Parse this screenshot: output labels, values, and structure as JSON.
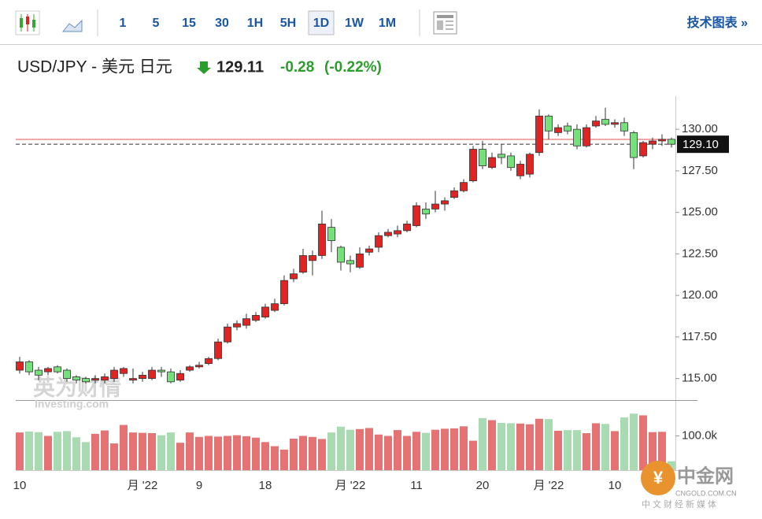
{
  "toolbar": {
    "intervals": [
      "1",
      "5",
      "15",
      "30",
      "1H",
      "5H",
      "1D",
      "1W",
      "1M"
    ],
    "active": 6,
    "link": "技术图表 »"
  },
  "header": {
    "symbol": "USD/JPY - 美元 日元",
    "price": "129.11",
    "change": "-0.28",
    "change_pct": "(-0.22%)"
  },
  "watermark": {
    "brand": "英为财情",
    "site": "Investing.com",
    "logo": "中金网",
    "logo_site": "CNGOLD.COM.CN",
    "logo_tag": "中文财经新媒体"
  },
  "chart_data": [
    {
      "type": "candlestick",
      "up_color": "#e02424",
      "down_color": "#76e07a",
      "categories": [
        "10",
        null,
        null,
        null,
        null,
        null,
        null,
        null,
        null,
        null,
        null,
        null,
        null,
        "月 '22",
        null,
        null,
        null,
        null,
        null,
        "9",
        null,
        null,
        null,
        null,
        null,
        null,
        "18",
        null,
        null,
        null,
        null,
        null,
        null,
        null,
        null,
        "月 '22",
        null,
        null,
        null,
        null,
        null,
        null,
        "11",
        null,
        null,
        null,
        null,
        null,
        null,
        "20",
        null,
        null,
        null,
        null,
        null,
        null,
        "月 '22",
        null,
        null,
        null,
        null,
        null,
        null,
        "10",
        null,
        null,
        null,
        null,
        null,
        null
      ],
      "open": [
        115.5,
        116.0,
        115.5,
        115.4,
        115.7,
        115.5,
        115.1,
        115.0,
        114.9,
        114.9,
        115.0,
        115.3,
        114.9,
        115.0,
        115.0,
        115.5,
        115.4,
        114.9,
        115.5,
        115.7,
        115.9,
        116.2,
        117.2,
        118.1,
        118.2,
        118.5,
        118.7,
        119.1,
        119.5,
        121.0,
        121.4,
        122.1,
        122.4,
        124.1,
        122.9,
        122.1,
        121.7,
        122.6,
        122.9,
        123.6,
        123.7,
        123.9,
        124.2,
        125.2,
        125.2,
        125.5,
        125.9,
        126.3,
        126.9,
        128.8,
        127.7,
        128.5,
        128.4,
        127.2,
        127.3,
        128.6,
        130.8,
        129.8,
        130.2,
        130.0,
        129.0,
        130.2,
        130.6,
        130.3,
        130.4,
        129.8,
        128.4,
        129.1,
        129.3,
        129.4
      ],
      "high": [
        116.3,
        116.1,
        115.7,
        115.7,
        115.8,
        115.6,
        115.2,
        115.1,
        115.2,
        115.3,
        115.7,
        115.7,
        115.6,
        115.4,
        115.7,
        115.7,
        115.6,
        115.5,
        115.8,
        116.0,
        116.3,
        117.4,
        118.3,
        118.5,
        118.9,
        119.0,
        119.5,
        119.8,
        121.2,
        121.6,
        122.8,
        122.7,
        125.1,
        124.6,
        123.0,
        122.4,
        122.9,
        123.0,
        123.8,
        124.0,
        124.2,
        124.5,
        125.6,
        125.6,
        126.3,
        125.9,
        126.5,
        127.0,
        129.0,
        129.3,
        128.6,
        129.1,
        128.6,
        128.1,
        128.6,
        131.2,
        130.9,
        130.3,
        130.4,
        130.3,
        130.3,
        130.8,
        131.3,
        130.6,
        130.7,
        129.9,
        129.3,
        129.5,
        129.7,
        129.5
      ],
      "low": [
        115.3,
        115.2,
        114.9,
        115.2,
        115.3,
        114.8,
        114.7,
        114.7,
        114.7,
        114.7,
        114.8,
        115.1,
        114.7,
        114.8,
        114.9,
        115.1,
        114.7,
        114.8,
        115.4,
        115.6,
        115.8,
        116.1,
        117.1,
        117.9,
        118.0,
        118.4,
        118.6,
        119.0,
        119.4,
        120.8,
        121.3,
        121.2,
        122.2,
        122.6,
        121.5,
        121.4,
        121.6,
        122.4,
        122.6,
        123.5,
        123.5,
        123.8,
        124.1,
        124.6,
        125.0,
        125.1,
        125.8,
        126.2,
        126.8,
        127.6,
        127.6,
        127.9,
        127.5,
        127.0,
        127.1,
        128.4,
        129.4,
        129.6,
        129.7,
        128.8,
        128.9,
        130.1,
        130.2,
        130.1,
        129.6,
        127.6,
        128.3,
        128.8,
        129.0,
        128.9
      ],
      "close": [
        116.0,
        115.4,
        115.2,
        115.6,
        115.4,
        115.0,
        114.9,
        114.8,
        115.0,
        115.1,
        115.5,
        115.6,
        115.0,
        115.2,
        115.5,
        115.4,
        114.8,
        115.3,
        115.7,
        115.8,
        116.2,
        117.2,
        118.1,
        118.3,
        118.6,
        118.8,
        119.3,
        119.5,
        120.9,
        121.3,
        122.4,
        122.4,
        124.3,
        123.3,
        122.0,
        121.9,
        122.5,
        122.8,
        123.6,
        123.8,
        123.9,
        124.3,
        125.4,
        124.9,
        125.5,
        125.7,
        126.3,
        126.8,
        128.8,
        127.8,
        128.3,
        128.3,
        127.7,
        127.9,
        128.5,
        130.8,
        129.9,
        130.1,
        129.9,
        129.0,
        130.1,
        130.5,
        130.3,
        130.4,
        129.9,
        128.3,
        129.2,
        129.3,
        129.4,
        129.1
      ],
      "last_price": {
        "value": 129.1,
        "label": "129.10"
      },
      "prev_close": 129.39,
      "ylim": [
        113.7,
        132
      ],
      "yticks": [
        {
          "value": 115,
          "label": "115.00"
        },
        {
          "value": 117.5,
          "label": "117.50"
        },
        {
          "value": 120,
          "label": "120.00"
        },
        {
          "value": 122.5,
          "label": "122.50"
        },
        {
          "value": 125,
          "label": "125.00"
        },
        {
          "value": 127.5,
          "label": "127.50"
        },
        {
          "value": 130,
          "label": "130.00"
        }
      ]
    },
    {
      "type": "bar",
      "up_color": "#e57373",
      "down_color": "#a9dbb2",
      "values": [
        110000,
        113000,
        111000,
        100000,
        112000,
        114000,
        96000,
        82000,
        106000,
        116000,
        78000,
        132000,
        110000,
        109000,
        108000,
        102000,
        110000,
        80000,
        110000,
        97000,
        100000,
        98000,
        100000,
        102000,
        99000,
        95000,
        82000,
        70000,
        60000,
        92000,
        100000,
        97000,
        91000,
        110000,
        127000,
        118000,
        120000,
        123000,
        104000,
        100000,
        117000,
        100000,
        112000,
        109000,
        118000,
        121000,
        122000,
        128000,
        86000,
        152000,
        146000,
        138000,
        137000,
        136000,
        134000,
        150000,
        149000,
        115000,
        117000,
        117000,
        108000,
        137000,
        135000,
        114000,
        154000,
        165000,
        160000,
        111000,
        112000,
        26000
      ],
      "ylim": [
        0,
        200000
      ],
      "yticks": [
        {
          "value": 100000,
          "label": "100.0k"
        }
      ]
    }
  ]
}
